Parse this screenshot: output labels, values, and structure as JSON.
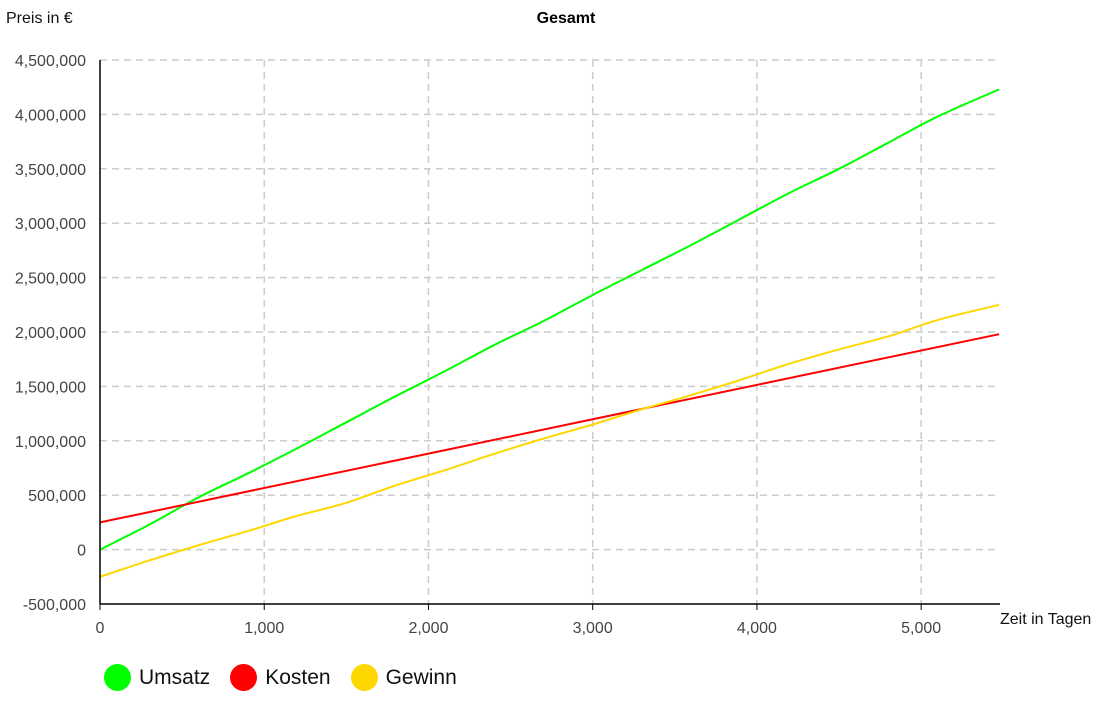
{
  "chart_data": {
    "type": "line",
    "title": "Gesamt",
    "ylabel": "Preis in €",
    "xlabel": "Zeit in Tagen",
    "xlim": [
      0,
      5480
    ],
    "ylim": [
      -500000,
      4500000
    ],
    "x_ticks": [
      0,
      1000,
      2000,
      3000,
      4000,
      5000
    ],
    "x_tick_labels": [
      "0",
      "1,000",
      "2,000",
      "3,000",
      "4,000",
      "5,000"
    ],
    "y_ticks": [
      -500000,
      0,
      500000,
      1000000,
      1500000,
      2000000,
      2500000,
      3000000,
      3500000,
      4000000,
      4500000
    ],
    "y_tick_labels": [
      "-500,000",
      "0",
      "500,000",
      "1,000,000",
      "1,500,000",
      "2,000,000",
      "2,500,000",
      "3,000,000",
      "3,500,000",
      "4,000,000",
      "4,500,000"
    ],
    "grid": true,
    "legend_position": "bottom-left",
    "series": [
      {
        "name": "Umsatz",
        "color": "#00ff00",
        "x": [
          0,
          300,
          600,
          900,
          1200,
          1500,
          1800,
          2100,
          2400,
          2700,
          3000,
          3300,
          3600,
          3900,
          4200,
          4500,
          4800,
          5100,
          5475
        ],
        "y": [
          0,
          230000,
          480000,
          700000,
          930000,
          1170000,
          1410000,
          1640000,
          1880000,
          2100000,
          2340000,
          2570000,
          2800000,
          3040000,
          3280000,
          3500000,
          3740000,
          3980000,
          4230000
        ]
      },
      {
        "name": "Kosten",
        "color": "#ff0000",
        "x": [
          0,
          5475
        ],
        "y": [
          250000,
          1980000
        ]
      },
      {
        "name": "Gewinn",
        "color": "#ffd700",
        "x": [
          0,
          300,
          600,
          900,
          1200,
          1500,
          1800,
          2100,
          2400,
          2700,
          3000,
          3300,
          3600,
          3900,
          4200,
          4500,
          4800,
          5100,
          5475
        ],
        "y": [
          -250000,
          -100000,
          40000,
          170000,
          310000,
          430000,
          590000,
          730000,
          880000,
          1020000,
          1150000,
          1290000,
          1420000,
          1560000,
          1710000,
          1840000,
          1960000,
          2110000,
          2250000
        ]
      }
    ]
  }
}
